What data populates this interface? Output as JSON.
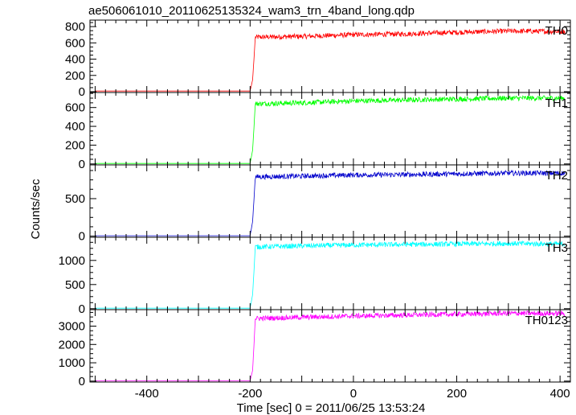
{
  "chart_data": {
    "type": "line",
    "title": "ae506061010_20110625135324_wam3_trn_4band_long.qdp",
    "xlabel": "Time [sec] 0 = 2011/06/25 13:53:24",
    "ylabel": "Counts/sec",
    "xlim": [
      -510,
      420
    ],
    "xticks": [
      -400,
      -200,
      0,
      200,
      400
    ],
    "grid": false,
    "panels": [
      {
        "name": "TH0",
        "color": "#ff0000",
        "ylim": [
          -10,
          880
        ],
        "yticks": [
          0,
          200,
          400,
          600,
          800
        ],
        "series": [
          {
            "name": "TH0",
            "x": [
              -500,
              -200,
              -195,
              -190,
              -100,
              0,
              100,
              200,
              300,
              400
            ],
            "y": [
              8,
              8,
              150,
              670,
              680,
              700,
              710,
              730,
              745,
              740
            ]
          }
        ]
      },
      {
        "name": "TH1",
        "color": "#00ff00",
        "ylim": [
          -10,
          760
        ],
        "yticks": [
          0,
          200,
          400,
          600
        ],
        "series": [
          {
            "name": "TH1",
            "x": [
              -500,
              -200,
              -195,
              -190,
              -100,
              0,
              100,
              200,
              300,
              400
            ],
            "y": [
              5,
              5,
              150,
              640,
              650,
              670,
              680,
              690,
              700,
              700
            ]
          }
        ]
      },
      {
        "name": "TH2",
        "color": "#0000cc",
        "ylim": [
          -15,
          950
        ],
        "yticks": [
          0,
          500
        ],
        "series": [
          {
            "name": "TH2",
            "x": [
              -500,
              -200,
              -195,
              -190,
              -100,
              0,
              100,
              200,
              300,
              400
            ],
            "y": [
              5,
              5,
              200,
              790,
              800,
              815,
              820,
              830,
              840,
              840
            ]
          }
        ]
      },
      {
        "name": "TH3",
        "color": "#00ffff",
        "ylim": [
          -20,
          1480
        ],
        "yticks": [
          0,
          500,
          1000
        ],
        "series": [
          {
            "name": "TH3",
            "x": [
              -500,
              -200,
              -195,
              -190,
              -100,
              0,
              100,
              200,
              300,
              400
            ],
            "y": [
              10,
              10,
              300,
              1280,
              1300,
              1320,
              1330,
              1340,
              1350,
              1340
            ]
          }
        ]
      },
      {
        "name": "TH0123",
        "color": "#ff00ff",
        "ylim": [
          -50,
          3900
        ],
        "yticks": [
          0,
          1000,
          2000,
          3000
        ],
        "series": [
          {
            "name": "TH0123",
            "x": [
              -500,
              -200,
              -195,
              -190,
              -100,
              0,
              100,
              200,
              300,
              400
            ],
            "y": [
              20,
              20,
              600,
              3420,
              3480,
              3550,
              3600,
              3650,
              3700,
              3690
            ]
          }
        ]
      }
    ]
  }
}
